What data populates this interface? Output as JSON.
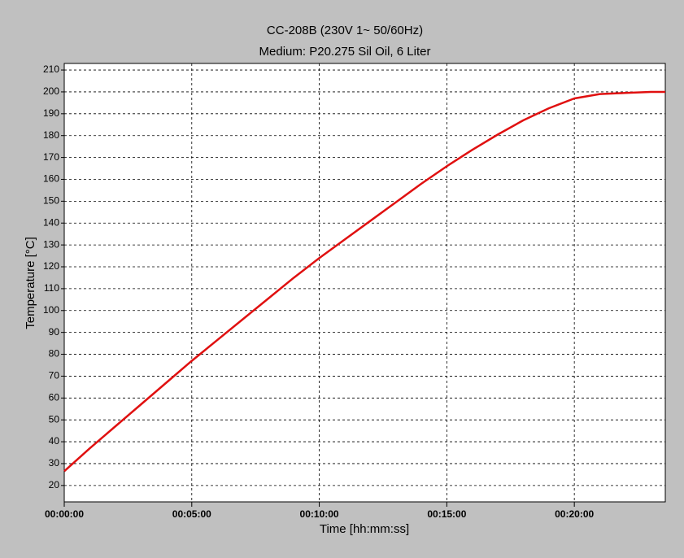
{
  "chart_data": {
    "type": "line",
    "title": "CC-208B (230V 1~ 50/60Hz)",
    "subtitle": "Medium: P20.275 Sil Oil, 6 Liter",
    "x_label": "Time [hh:mm:ss]",
    "y_label": "Temperature [°C]",
    "x": [
      0,
      60,
      120,
      180,
      240,
      300,
      360,
      420,
      480,
      540,
      600,
      660,
      720,
      780,
      840,
      900,
      960,
      1020,
      1080,
      1140,
      1200,
      1260,
      1320,
      1380,
      1414
    ],
    "series": [
      {
        "name": "Temperature",
        "color": "#e01010",
        "values": [
          26.5,
          37,
          47,
          57,
          67,
          77,
          86.5,
          96,
          105.5,
          115,
          124,
          132.5,
          141,
          149.5,
          158,
          166,
          173.5,
          180.5,
          187,
          192.5,
          197,
          199,
          199.5,
          200,
          200
        ]
      }
    ],
    "xlim": [
      0,
      1414
    ],
    "xticks": [
      {
        "value": 0,
        "label": "00:00:00"
      },
      {
        "value": 300,
        "label": "00:05:00"
      },
      {
        "value": 600,
        "label": "00:10:00"
      },
      {
        "value": 900,
        "label": "00:15:00"
      },
      {
        "value": 1200,
        "label": "00:20:00"
      }
    ],
    "ylim": [
      12.5,
      213
    ],
    "yticks": [
      20,
      30,
      40,
      50,
      60,
      70,
      80,
      90,
      100,
      110,
      120,
      130,
      140,
      150,
      160,
      170,
      180,
      190,
      200,
      210
    ],
    "grid": true
  }
}
